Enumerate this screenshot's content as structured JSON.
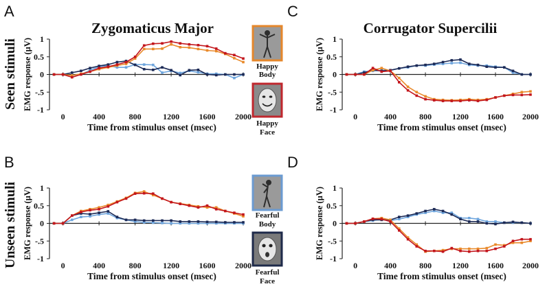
{
  "row_labels": [
    "Seen stimuli",
    "Unseen stimuli"
  ],
  "stimuli": {
    "happy_body": {
      "line1": "Happy",
      "line2": "Body",
      "frame": "#e5872b"
    },
    "happy_face": {
      "line1": "Happy",
      "line2": "Face",
      "frame": "#c0272d"
    },
    "fearful_body": {
      "line1": "Fearful",
      "line2": "Body",
      "frame": "#6b9bd2"
    },
    "fearful_face": {
      "line1": "Fearful",
      "line2": "Face",
      "frame": "#1e2a4a"
    }
  },
  "colors": {
    "red": "#c3161c",
    "orange": "#e98a2b",
    "navy": "#1c2a56",
    "lightblue": "#6ea5dd"
  },
  "chart_data": [
    {
      "id": "A",
      "type": "line",
      "title": "Zygomaticus Major",
      "xlabel": "Time from stimulus onset (msec)",
      "ylabel": "EMG response (µV)",
      "xlim": [
        -150,
        2000
      ],
      "ylim": [
        -1,
        1
      ],
      "xticks": [
        "0",
        "400",
        "800",
        "1200",
        "1600",
        "2000"
      ],
      "yticks": [
        "1",
        "0.5",
        "0",
        "-.5",
        "-1"
      ],
      "x": [
        -100,
        0,
        100,
        200,
        300,
        400,
        500,
        600,
        700,
        800,
        900,
        1000,
        1100,
        1200,
        1300,
        1400,
        1500,
        1600,
        1700,
        1800,
        1900,
        2000
      ],
      "series": [
        {
          "name": "red",
          "values": [
            0,
            0,
            -0.08,
            0,
            0.08,
            0.18,
            0.22,
            0.28,
            0.35,
            0.5,
            0.82,
            0.87,
            0.88,
            0.93,
            0.88,
            0.85,
            0.83,
            0.8,
            0.73,
            0.6,
            0.55,
            0.45
          ]
        },
        {
          "name": "orange",
          "values": [
            0,
            0,
            -0.03,
            0.02,
            0.08,
            0.15,
            0.2,
            0.25,
            0.3,
            0.45,
            0.72,
            0.72,
            0.73,
            0.85,
            0.77,
            0.76,
            0.72,
            0.68,
            0.66,
            0.58,
            0.46,
            0.35
          ]
        },
        {
          "name": "navy",
          "values": [
            0,
            0,
            0.05,
            0.1,
            0.18,
            0.24,
            0.28,
            0.35,
            0.38,
            0.27,
            0.15,
            0.13,
            0.2,
            0.12,
            -0.02,
            0.12,
            0.13,
            0,
            -0.02,
            0,
            0,
            0
          ]
        },
        {
          "name": "lightblue",
          "values": [
            0,
            0,
            -0.03,
            0,
            0.12,
            0.22,
            0.25,
            0.2,
            0.2,
            0.28,
            0.28,
            0.27,
            0.05,
            0.1,
            0.04,
            0.1,
            0.06,
            0.02,
            0.02,
            0.0,
            -0.1,
            0
          ]
        }
      ]
    },
    {
      "id": "B",
      "type": "line",
      "title": "",
      "xlabel": "Time from stimulus onset (msec)",
      "ylabel": "EMG response (µV)",
      "xlim": [
        -150,
        2000
      ],
      "ylim": [
        -1,
        1
      ],
      "xticks": [
        "0",
        "400",
        "800",
        "1200",
        "1600",
        "2000"
      ],
      "yticks": [
        "1",
        "0.5",
        "0",
        "-.5",
        "-1"
      ],
      "x": [
        -100,
        0,
        100,
        200,
        300,
        400,
        500,
        600,
        700,
        800,
        900,
        1000,
        1100,
        1200,
        1300,
        1400,
        1500,
        1600,
        1700,
        1800,
        1900,
        2000
      ],
      "series": [
        {
          "name": "red",
          "values": [
            0,
            0,
            0.22,
            0.32,
            0.37,
            0.4,
            0.48,
            0.6,
            0.7,
            0.84,
            0.85,
            0.84,
            0.7,
            0.6,
            0.55,
            0.5,
            0.45,
            0.5,
            0.4,
            0.35,
            0.3,
            0.25
          ]
        },
        {
          "name": "orange",
          "values": [
            0,
            0,
            0.22,
            0.35,
            0.4,
            0.45,
            0.52,
            0.62,
            0.72,
            0.86,
            0.9,
            0.8,
            0.7,
            0.6,
            0.56,
            0.52,
            0.48,
            0.45,
            0.45,
            0.35,
            0.28,
            0.2
          ]
        },
        {
          "name": "navy",
          "values": [
            0,
            0,
            0.22,
            0.28,
            0.26,
            0.3,
            0.34,
            0.18,
            0.1,
            0.1,
            0.08,
            0.08,
            0.08,
            0.08,
            0.05,
            0.05,
            0.05,
            0.04,
            0.04,
            0.03,
            0.03,
            0.03
          ]
        },
        {
          "name": "lightblue",
          "values": [
            0,
            0,
            0.1,
            0.18,
            0.2,
            0.25,
            0.28,
            0.15,
            0.1,
            0.05,
            0.03,
            0.02,
            0.01,
            0,
            0,
            0,
            0,
            0,
            0,
            0,
            0,
            0
          ]
        }
      ]
    },
    {
      "id": "C",
      "type": "line",
      "title": "Corrugator Supercilii",
      "xlabel": "Time from stimulus onset (msec)",
      "ylabel": "EMG response (µV)",
      "xlim": [
        -150,
        2000
      ],
      "ylim": [
        -1,
        1
      ],
      "xticks": [
        "0",
        "400",
        "800",
        "1200",
        "1600",
        "2000"
      ],
      "yticks": [
        "1",
        "0.5",
        "0",
        "-.5",
        "-1"
      ],
      "x": [
        -100,
        0,
        100,
        200,
        300,
        400,
        500,
        600,
        700,
        800,
        900,
        1000,
        1100,
        1200,
        1300,
        1400,
        1500,
        1600,
        1700,
        1800,
        1900,
        2000
      ],
      "series": [
        {
          "name": "red",
          "values": [
            0,
            0,
            0,
            0.18,
            0.08,
            0.1,
            -0.22,
            -0.45,
            -0.6,
            -0.7,
            -0.73,
            -0.75,
            -0.75,
            -0.75,
            -0.73,
            -0.75,
            -0.72,
            -0.65,
            -0.6,
            -0.58,
            -0.58,
            -0.57
          ]
        },
        {
          "name": "orange",
          "values": [
            0,
            0,
            0,
            0.12,
            0.18,
            0.1,
            -0.1,
            -0.35,
            -0.5,
            -0.62,
            -0.7,
            -0.72,
            -0.73,
            -0.72,
            -0.7,
            -0.72,
            -0.7,
            -0.65,
            -0.6,
            -0.55,
            -0.5,
            -0.48
          ]
        },
        {
          "name": "navy",
          "values": [
            0,
            0,
            0.05,
            0.12,
            0.1,
            0.12,
            0.17,
            0.22,
            0.25,
            0.27,
            0.3,
            0.35,
            0.4,
            0.42,
            0.3,
            0.27,
            0.22,
            0.2,
            0.2,
            0.1,
            0,
            0
          ]
        },
        {
          "name": "lightblue",
          "values": [
            0,
            0,
            0.08,
            0.1,
            0.12,
            0.12,
            0.17,
            0.2,
            0.25,
            0.25,
            0.28,
            0.3,
            0.32,
            0.33,
            0.27,
            0.25,
            0.25,
            0.22,
            0.2,
            0.05,
            0,
            0
          ]
        }
      ]
    },
    {
      "id": "D",
      "type": "line",
      "title": "",
      "xlabel": "Time from stimulus onset (msec)",
      "ylabel": "EMG response (µV)",
      "xlim": [
        -150,
        2000
      ],
      "ylim": [
        -1,
        1
      ],
      "xticks": [
        "0",
        "400",
        "800",
        "1200",
        "1600",
        "2000"
      ],
      "yticks": [
        "1",
        "0.5",
        "0",
        "-.5",
        "-1"
      ],
      "x": [
        -100,
        0,
        100,
        200,
        300,
        400,
        500,
        600,
        700,
        800,
        900,
        1000,
        1100,
        1200,
        1300,
        1400,
        1500,
        1600,
        1700,
        1800,
        1900,
        2000
      ],
      "series": [
        {
          "name": "red",
          "values": [
            0,
            0,
            0.05,
            0.13,
            0.12,
            0.05,
            -0.2,
            -0.45,
            -0.65,
            -0.78,
            -0.78,
            -0.8,
            -0.7,
            -0.78,
            -0.8,
            -0.78,
            -0.78,
            -0.72,
            -0.65,
            -0.5,
            -0.45,
            -0.45
          ]
        },
        {
          "name": "orange",
          "values": [
            0,
            0,
            0.05,
            0.13,
            0.15,
            0.1,
            -0.15,
            -0.4,
            -0.6,
            -0.8,
            -0.78,
            -0.76,
            -0.72,
            -0.72,
            -0.72,
            -0.72,
            -0.7,
            -0.6,
            -0.62,
            -0.55,
            -0.55,
            -0.5
          ]
        },
        {
          "name": "navy",
          "values": [
            0,
            0,
            0.05,
            0.1,
            0.1,
            0.1,
            0.18,
            0.22,
            0.28,
            0.35,
            0.4,
            0.35,
            0.25,
            0.12,
            0.05,
            0.05,
            0,
            -0.02,
            0.02,
            0.04,
            0.02,
            0
          ]
        },
        {
          "name": "lightblue",
          "values": [
            0,
            0,
            0.05,
            0.08,
            0.12,
            0.08,
            0.12,
            0.18,
            0.25,
            0.3,
            0.35,
            0.3,
            0.3,
            0.15,
            0.15,
            0.12,
            0.05,
            0.05,
            0.02,
            0.02,
            0.02,
            0.0
          ]
        }
      ]
    }
  ]
}
